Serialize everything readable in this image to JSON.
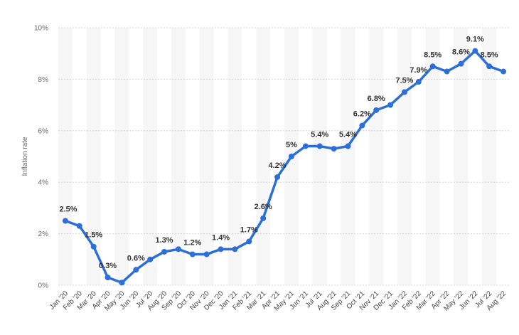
{
  "chart_data": {
    "type": "line",
    "title": "",
    "xlabel": "",
    "ylabel": "Inflation rate",
    "ylim": [
      0,
      10
    ],
    "y_ticks": [
      "0%",
      "2%",
      "4%",
      "6%",
      "8%",
      "10%"
    ],
    "grid": "horizontal dashed",
    "accent_color": "#2d6fd8",
    "categories": [
      "Jan '20",
      "Feb '20",
      "Mar '20",
      "Apr '20",
      "May '20",
      "Jun '20",
      "Jul '20",
      "Aug '20",
      "Sep '20",
      "Oct '20",
      "Nov '20",
      "Dec '20",
      "Jan '21",
      "Feb '21",
      "Mar '21",
      "Apr '21",
      "May '21",
      "Jun '21",
      "Jul '21",
      "Aug '21",
      "Sep '21",
      "Oct '21",
      "Nov '21",
      "Dec '21",
      "Jan '22",
      "Feb '22",
      "Mar '22",
      "Apr '22",
      "May '22",
      "Jun '22",
      "Jul '22",
      "Aug '22"
    ],
    "values": [
      2.5,
      2.3,
      1.5,
      0.3,
      0.1,
      0.6,
      1.0,
      1.3,
      1.4,
      1.2,
      1.2,
      1.4,
      1.4,
      1.7,
      2.6,
      4.2,
      5.0,
      5.4,
      5.4,
      5.3,
      5.4,
      6.2,
      6.8,
      7.0,
      7.5,
      7.9,
      8.5,
      8.3,
      8.6,
      9.1,
      8.5,
      8.3
    ],
    "data_labels": [
      {
        "index": 0,
        "text": "2.5%"
      },
      {
        "index": 2,
        "text": "1.5%"
      },
      {
        "index": 3,
        "text": "0.3%"
      },
      {
        "index": 5,
        "text": "0.6%"
      },
      {
        "index": 7,
        "text": "1.3%"
      },
      {
        "index": 9,
        "text": "1.2%"
      },
      {
        "index": 11,
        "text": "1.4%"
      },
      {
        "index": 13,
        "text": "1.7%"
      },
      {
        "index": 14,
        "text": "2.6%"
      },
      {
        "index": 15,
        "text": "4.2%"
      },
      {
        "index": 16,
        "text": "5%"
      },
      {
        "index": 18,
        "text": "5.4%"
      },
      {
        "index": 20,
        "text": "5.4%"
      },
      {
        "index": 21,
        "text": "6.2%"
      },
      {
        "index": 22,
        "text": "6.8%"
      },
      {
        "index": 24,
        "text": "7.5%"
      },
      {
        "index": 25,
        "text": "7.9%"
      },
      {
        "index": 26,
        "text": "8.5%"
      },
      {
        "index": 28,
        "text": "8.6%"
      },
      {
        "index": 29,
        "text": "9.1%"
      },
      {
        "index": 30,
        "text": "8.5%"
      }
    ]
  }
}
